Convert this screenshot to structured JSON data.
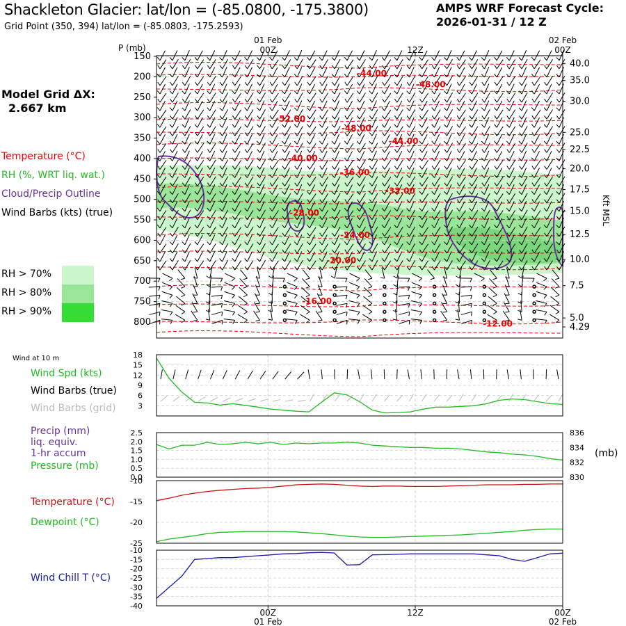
{
  "header": {
    "title": "Shackleton Glacier:  lat/lon = (-85.0800, -175.3800)",
    "subtitle": "Grid Point (350, 394) lat/lon = (-85.0803, -175.2593)",
    "cycle_label": "AMPS WRF Forecast Cycle:",
    "cycle_value": "2026-01-31 / 12  Z",
    "grid_label": "Model Grid ΔX:",
    "grid_value": "2.667 km"
  },
  "time_axis": {
    "ticks": [
      {
        "date": "01 Feb",
        "hour": "00Z",
        "pos": 0.2745
      },
      {
        "date": "",
        "hour": "12Z",
        "pos": 0.637
      },
      {
        "date": "02 Feb",
        "hour": "00Z",
        "pos": 1.0
      }
    ]
  },
  "legend": {
    "temperature": "Temperature (°C)",
    "rh": "RH (%, WRT liq. wat.)",
    "cloud": "Cloud/Precip Outline",
    "barbs": "Wind Barbs (kts) (true)",
    "rh70": "RH > 70%",
    "rh80": "RH > 80%",
    "rh90": "RH > 90%",
    "p_axis_label": "P (mb)",
    "kft_label": "Kft MSL",
    "colors": {
      "temperature": "#ee0000",
      "rh70": "#ccf6cc",
      "rh80": "#99e699",
      "rh90": "#33dd33",
      "cloud": "#663399"
    }
  },
  "chart_data": [
    {
      "type": "heatmap",
      "title": "",
      "y_axis": {
        "label": "P (mb)",
        "ticks": [
          "150",
          "200",
          "250",
          "300",
          "350",
          "400",
          "450",
          "500",
          "550",
          "600",
          "650",
          "700",
          "750",
          "800"
        ],
        "range": [
          150,
          820
        ]
      },
      "right_axis": {
        "label": "Kft MSL",
        "ticks": [
          {
            "label": "40.0",
            "p": 168
          },
          {
            "label": "35.0",
            "p": 209
          },
          {
            "label": "30.0",
            "p": 260
          },
          {
            "label": "25.0",
            "p": 336
          },
          {
            "label": "22.5",
            "p": 378
          },
          {
            "label": "20.0",
            "p": 425
          },
          {
            "label": "17.5",
            "p": 476
          },
          {
            "label": "15.0",
            "p": 529
          },
          {
            "label": "12.5",
            "p": 586
          },
          {
            "label": "10.0",
            "p": 647
          },
          {
            "label": "7.5",
            "p": 711
          },
          {
            "label": "5.0",
            "p": 790
          },
          {
            "label": "4.29",
            "p": 812
          }
        ]
      },
      "temperature_labels": [
        {
          "text": "-44.00",
          "t": 0.53,
          "p": 192
        },
        {
          "text": "-48.00",
          "t": 0.675,
          "p": 219
        },
        {
          "text": "-52.00",
          "t": 0.33,
          "p": 303
        },
        {
          "text": "-48.00",
          "t": 0.492,
          "p": 326
        },
        {
          "text": "-44.00",
          "t": 0.608,
          "p": 358
        },
        {
          "text": "-40.00",
          "t": 0.36,
          "p": 399
        },
        {
          "text": "-36.00",
          "t": 0.488,
          "p": 434
        },
        {
          "text": "-32.00",
          "t": 0.6,
          "p": 479
        },
        {
          "text": "-28.00",
          "t": 0.364,
          "p": 533
        },
        {
          "text": "-24.00",
          "t": 0.489,
          "p": 587
        },
        {
          "text": "-20.00",
          "t": 0.455,
          "p": 649
        },
        {
          "text": "-16.00",
          "t": 0.395,
          "p": 749
        },
        {
          "text": "-12.00",
          "t": 0.84,
          "p": 804
        }
      ]
    },
    {
      "type": "line",
      "title": "Wind at 10 m",
      "y_axis": {
        "ticks": [
          "18",
          "15",
          "12",
          "9",
          "6",
          "3"
        ],
        "range": [
          0,
          18
        ]
      },
      "series": [
        {
          "name": "Wind Spd (kts)",
          "color": "#22bb22",
          "values": [
            17,
            11,
            7,
            4,
            3.8,
            3.2,
            3.6,
            3.1,
            2.6,
            2,
            1.7,
            1.4,
            1.2,
            4,
            6.8,
            6.2,
            4.2,
            1.7,
            0.9,
            1,
            1.2,
            2,
            2.6,
            2.6,
            2.8,
            3,
            3.6,
            4.6,
            5,
            4.8,
            4.2,
            3.6,
            3.4
          ]
        }
      ],
      "labels": {
        "barbs_true": "Wind Barbs (true)",
        "barbs_grid": "Wind Barbs (grid)"
      }
    },
    {
      "type": "line",
      "title": "",
      "left_axis": {
        "ticks": [
          "2.5",
          "2.0",
          "1.5",
          "1.0",
          "0.5",
          "0.0"
        ],
        "range": [
          0,
          2.5
        ]
      },
      "right_axis": {
        "ticks": [
          "836",
          "834",
          "832",
          "830"
        ],
        "range": [
          830,
          836
        ],
        "label": "(mb)"
      },
      "series": [
        {
          "name": "Pressure (mb)",
          "color": "#22bb22",
          "values": [
            834.4,
            833.8,
            834.3,
            834.3,
            834.7,
            834.4,
            834.5,
            834.7,
            834.5,
            834.7,
            834.4,
            834.6,
            834.5,
            834.6,
            834.6,
            834.7,
            834.6,
            834.3,
            834.2,
            834.1,
            834,
            834,
            833.9,
            833.9,
            833.8,
            833.6,
            833.4,
            833.3,
            833.1,
            833,
            832.8,
            832.5,
            832.3
          ]
        }
      ],
      "labels": {
        "precip": "Precip (mm)",
        "liq": "liq. equiv.",
        "accum": "1-hr accum"
      }
    },
    {
      "type": "line",
      "title": "",
      "y_axis": {
        "ticks": [
          "-10",
          "-15",
          "-20",
          "-25"
        ],
        "range": [
          -25,
          -10
        ]
      },
      "series": [
        {
          "name": "Temperature (°C)",
          "color": "#cc1111",
          "values": [
            -14.8,
            -14.2,
            -13.5,
            -13,
            -12.6,
            -12.3,
            -12.1,
            -11.9,
            -11.8,
            -11.6,
            -11.3,
            -11,
            -10.9,
            -10.8,
            -10.9,
            -11.1,
            -11.3,
            -11.4,
            -11.3,
            -11.3,
            -11.4,
            -11.4,
            -11.4,
            -11.3,
            -11.2,
            -11.1,
            -11,
            -11,
            -11,
            -10.9,
            -10.9,
            -10.8,
            -10.8
          ]
        },
        {
          "name": "Dewpoint (°C)",
          "color": "#22bb22",
          "values": [
            -24.6,
            -24,
            -23.6,
            -23.2,
            -22.7,
            -22.4,
            -22.3,
            -22.2,
            -22.2,
            -22.2,
            -22.2,
            -22.3,
            -22.5,
            -22.7,
            -23,
            -23.3,
            -23.5,
            -23.6,
            -23.6,
            -23.5,
            -23.4,
            -23.3,
            -23.2,
            -23.1,
            -23,
            -22.8,
            -22.6,
            -22.4,
            -22.2,
            -21.9,
            -21.7,
            -21.6,
            -21.6
          ]
        }
      ]
    },
    {
      "type": "line",
      "title": "",
      "y_axis": {
        "ticks": [
          "-10",
          "-15",
          "-20",
          "-25",
          "-30",
          "-35",
          "-40"
        ],
        "range": [
          -40,
          -10
        ]
      },
      "series": [
        {
          "name": "Wind Chill T (°C)",
          "color": "#1a1aa0",
          "values": [
            -36,
            -30,
            -24,
            -15,
            -14.5,
            -14,
            -14,
            -13.5,
            -13,
            -12.5,
            -12,
            -11.8,
            -11.4,
            -11.2,
            -11.5,
            -18,
            -17.8,
            -12.5,
            -12.4,
            -12.2,
            -12,
            -12,
            -12,
            -12,
            -12,
            -12,
            -12.5,
            -13,
            -15,
            -16,
            -14,
            -12,
            -11.6
          ]
        }
      ]
    }
  ]
}
